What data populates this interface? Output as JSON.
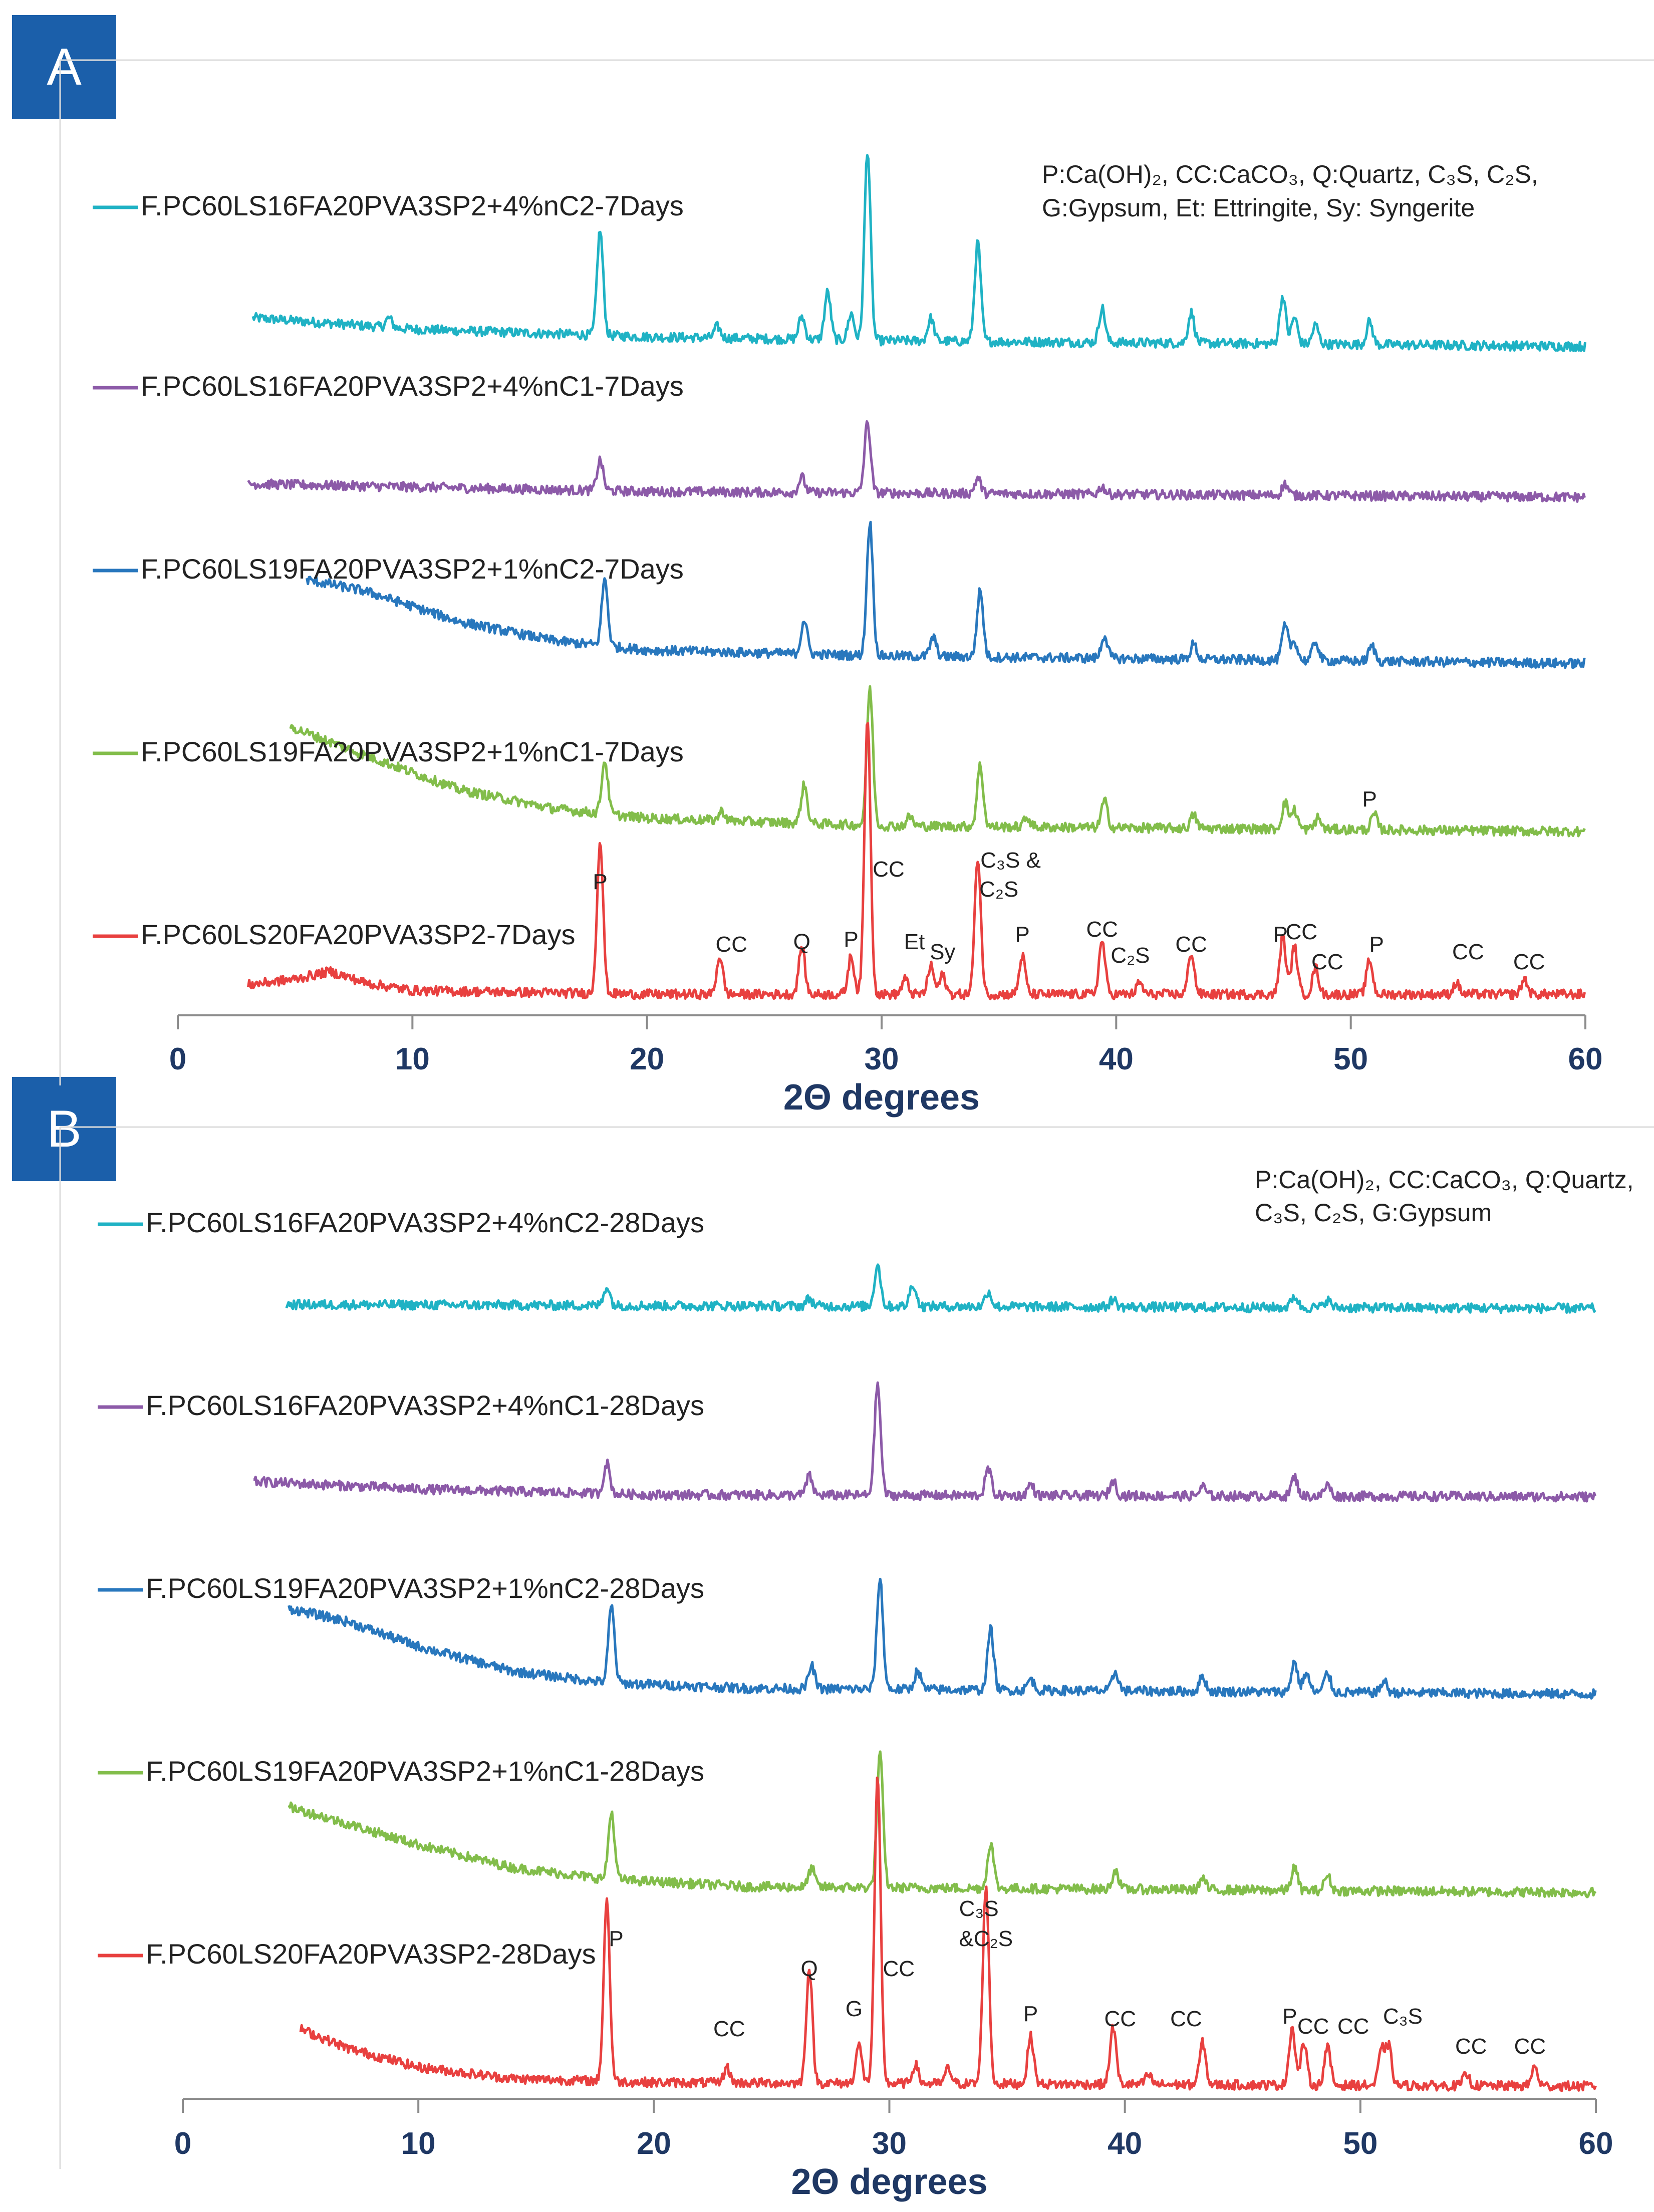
{
  "chart_data": [
    {
      "panel": "A",
      "type": "line",
      "title": "",
      "xlabel": "2Θ degrees",
      "ylabel": "",
      "xlim": [
        0,
        60
      ],
      "xticks": [
        0,
        10,
        20,
        30,
        40,
        50,
        60
      ],
      "legend_note": [
        "P:Ca(OH)₂, CC:CaCO₃, Q:Quartz, C₃S, C₂S,",
        "G:Gypsum, Et: Ettringite, Sy: Syngerite"
      ],
      "series": [
        {
          "name": "F.PC60LS16FA20PVA3SP2+4%nC2-7Days",
          "color": "#1fb2c4",
          "x_start": 3.2,
          "x_end": 60,
          "baseline": [
            [
              3.2,
              0.12
            ],
            [
              10,
              0.06
            ],
            [
              20,
              0.02
            ],
            [
              30,
              0.0
            ],
            [
              40,
              -0.01
            ],
            [
              60,
              -0.03
            ]
          ],
          "peaks": [
            [
              9.0,
              0.05
            ],
            [
              18.0,
              0.55
            ],
            [
              23.0,
              0.06
            ],
            [
              26.6,
              0.12
            ],
            [
              27.7,
              0.25
            ],
            [
              28.7,
              0.14
            ],
            [
              29.4,
              1.0
            ],
            [
              32.1,
              0.12
            ],
            [
              34.1,
              0.52
            ],
            [
              39.4,
              0.18
            ],
            [
              43.2,
              0.16
            ],
            [
              47.1,
              0.25
            ],
            [
              47.6,
              0.14
            ],
            [
              48.5,
              0.1
            ],
            [
              50.8,
              0.12
            ]
          ]
        },
        {
          "name": "F.PC60LS16FA20PVA3SP2+4%nC1-7Days",
          "color": "#8c5aa8",
          "x_start": 3.0,
          "x_end": 60,
          "baseline": [
            [
              3.0,
              0.05
            ],
            [
              20,
              0.01
            ],
            [
              60,
              -0.02
            ]
          ],
          "peaks": [
            [
              18.0,
              0.16
            ],
            [
              26.6,
              0.08
            ],
            [
              29.4,
              0.37
            ],
            [
              34.1,
              0.08
            ],
            [
              39.4,
              0.04
            ],
            [
              47.2,
              0.06
            ]
          ]
        },
        {
          "name": "F.PC60LS19FA20PVA3SP2+1%nC2-7Days",
          "color": "#2877bd",
          "x_start": 5.5,
          "x_end": 60,
          "baseline": [
            [
              5.5,
              0.42
            ],
            [
              8,
              0.36
            ],
            [
              12,
              0.2
            ],
            [
              16,
              0.1
            ],
            [
              20,
              0.05
            ],
            [
              30,
              0.02
            ],
            [
              60,
              -0.02
            ]
          ],
          "peaks": [
            [
              18.2,
              0.35
            ],
            [
              26.7,
              0.18
            ],
            [
              29.5,
              0.7
            ],
            [
              32.2,
              0.1
            ],
            [
              34.2,
              0.35
            ],
            [
              39.5,
              0.12
            ],
            [
              43.3,
              0.08
            ],
            [
              47.2,
              0.18
            ],
            [
              47.6,
              0.1
            ],
            [
              48.5,
              0.1
            ],
            [
              50.9,
              0.08
            ]
          ]
        },
        {
          "name": "F.PC60LS19FA20PVA3SP2+1%nC1-7Days",
          "color": "#82bd4a",
          "x_start": 4.8,
          "x_end": 60,
          "baseline": [
            [
              4.8,
              0.55
            ],
            [
              8,
              0.4
            ],
            [
              12,
              0.22
            ],
            [
              16,
              0.12
            ],
            [
              20,
              0.07
            ],
            [
              30,
              0.03
            ],
            [
              60,
              0.0
            ]
          ],
          "peaks": [
            [
              18.2,
              0.28
            ],
            [
              23.2,
              0.05
            ],
            [
              26.7,
              0.2
            ],
            [
              29.5,
              0.72
            ],
            [
              31.2,
              0.05
            ],
            [
              34.2,
              0.32
            ],
            [
              36.2,
              0.05
            ],
            [
              39.5,
              0.14
            ],
            [
              43.3,
              0.07
            ],
            [
              47.2,
              0.14
            ],
            [
              47.6,
              0.1
            ],
            [
              48.6,
              0.06
            ],
            [
              51.0,
              0.08
            ]
          ]
        },
        {
          "name": "F.PC60LS20FA20PVA3SP2-7Days",
          "color": "#e8403f",
          "x_start": 3.0,
          "x_end": 60,
          "baseline": [
            [
              3.0,
              0.05
            ],
            [
              5,
              0.08
            ],
            [
              6.5,
              0.12
            ],
            [
              8,
              0.06
            ],
            [
              10,
              0.02
            ],
            [
              20,
              0.0
            ],
            [
              60,
              0.0
            ]
          ],
          "peaks": [
            [
              18.0,
              0.8
            ],
            [
              23.1,
              0.2
            ],
            [
              26.6,
              0.25
            ],
            [
              28.7,
              0.2
            ],
            [
              29.4,
              1.45
            ],
            [
              31.0,
              0.08
            ],
            [
              32.1,
              0.15
            ],
            [
              32.6,
              0.1
            ],
            [
              34.1,
              0.72
            ],
            [
              36.0,
              0.2
            ],
            [
              39.4,
              0.28
            ],
            [
              41.0,
              0.06
            ],
            [
              43.2,
              0.22
            ],
            [
              47.1,
              0.3
            ],
            [
              47.6,
              0.25
            ],
            [
              48.5,
              0.14
            ],
            [
              50.8,
              0.18
            ],
            [
              54.5,
              0.06
            ],
            [
              57.4,
              0.08
            ]
          ]
        }
      ],
      "annotations": [
        {
          "text": "P",
          "x": 18.0
        },
        {
          "text": "CC",
          "x": 23.6
        },
        {
          "text": "Q",
          "x": 26.6
        },
        {
          "text": "P",
          "x": 28.7
        },
        {
          "text": "CC",
          "x": 30.3
        },
        {
          "text": "Et",
          "x": 31.4
        },
        {
          "text": "Sy",
          "x": 32.6
        },
        {
          "text": "C₃S &",
          "x": 35.5
        },
        {
          "text": "C₂S",
          "x": 35.0
        },
        {
          "text": "P",
          "x": 36.0
        },
        {
          "text": "CC",
          "x": 39.4
        },
        {
          "text": "C₂S",
          "x": 40.6
        },
        {
          "text": "CC",
          "x": 43.2
        },
        {
          "text": "P",
          "x": 47.0
        },
        {
          "text": "CC",
          "x": 47.9
        },
        {
          "text": "CC",
          "x": 49.0
        },
        {
          "text": "P",
          "x": 50.8
        },
        {
          "text": "P",
          "x": 51.1
        },
        {
          "text": "CC",
          "x": 55.0
        },
        {
          "text": "CC",
          "x": 57.6
        }
      ]
    },
    {
      "panel": "B",
      "type": "line",
      "title": "",
      "xlabel": "2Θ degrees",
      "ylabel": "",
      "xlim": [
        0,
        60
      ],
      "xticks": [
        0,
        10,
        20,
        30,
        40,
        50,
        60
      ],
      "legend_note": [
        "P:Ca(OH)₂, CC:CaCO₃, Q:Quartz,",
        "C₃S, C₂S, G:Gypsum"
      ],
      "series": [
        {
          "name": "F.PC60LS16FA20PVA3SP2+4%nC2-28Days",
          "color": "#1fb2c4",
          "x_start": 4.4,
          "x_end": 60,
          "baseline": [
            [
              4.4,
              0.02
            ],
            [
              60,
              0.0
            ]
          ],
          "peaks": [
            [
              18.0,
              0.1
            ],
            [
              26.6,
              0.04
            ],
            [
              29.5,
              0.22
            ],
            [
              31.0,
              0.12
            ],
            [
              34.2,
              0.08
            ],
            [
              39.5,
              0.04
            ],
            [
              47.2,
              0.06
            ],
            [
              48.6,
              0.04
            ]
          ]
        },
        {
          "name": "F.PC60LS16FA20PVA3SP2+4%nC1-28Days",
          "color": "#8c5aa8",
          "x_start": 3.0,
          "x_end": 60,
          "baseline": [
            [
              3.0,
              0.08
            ],
            [
              10,
              0.04
            ],
            [
              20,
              0.01
            ],
            [
              60,
              0.0
            ]
          ],
          "peaks": [
            [
              18.0,
              0.16
            ],
            [
              26.6,
              0.1
            ],
            [
              29.5,
              0.58
            ],
            [
              34.2,
              0.14
            ],
            [
              36.0,
              0.06
            ],
            [
              39.5,
              0.08
            ],
            [
              43.3,
              0.05
            ],
            [
              47.2,
              0.1
            ],
            [
              48.6,
              0.06
            ]
          ]
        },
        {
          "name": "F.PC60LS19FA20PVA3SP2+1%nC2-28Days",
          "color": "#2877bd",
          "x_start": 4.5,
          "x_end": 60,
          "baseline": [
            [
              4.5,
              0.45
            ],
            [
              7,
              0.38
            ],
            [
              10,
              0.25
            ],
            [
              14,
              0.12
            ],
            [
              18,
              0.06
            ],
            [
              24,
              0.03
            ],
            [
              60,
              0.0
            ]
          ],
          "peaks": [
            [
              18.2,
              0.4
            ],
            [
              26.7,
              0.12
            ],
            [
              29.6,
              0.58
            ],
            [
              31.2,
              0.1
            ],
            [
              34.3,
              0.32
            ],
            [
              36.0,
              0.06
            ],
            [
              39.6,
              0.1
            ],
            [
              43.3,
              0.08
            ],
            [
              47.2,
              0.16
            ],
            [
              47.7,
              0.1
            ],
            [
              48.6,
              0.1
            ],
            [
              51.0,
              0.06
            ]
          ]
        },
        {
          "name": "F.PC60LS19FA20PVA3SP2+1%nC1-28Days",
          "color": "#82bd4a",
          "x_start": 4.5,
          "x_end": 60,
          "baseline": [
            [
              4.5,
              0.45
            ],
            [
              7,
              0.36
            ],
            [
              10,
              0.25
            ],
            [
              14,
              0.13
            ],
            [
              18,
              0.07
            ],
            [
              24,
              0.03
            ],
            [
              60,
              0.0
            ]
          ],
          "peaks": [
            [
              18.2,
              0.35
            ],
            [
              26.7,
              0.1
            ],
            [
              29.6,
              0.7
            ],
            [
              34.3,
              0.24
            ],
            [
              39.6,
              0.1
            ],
            [
              43.3,
              0.06
            ],
            [
              47.2,
              0.12
            ],
            [
              48.6,
              0.08
            ]
          ]
        },
        {
          "name": "F.PC60LS20FA20PVA3SP2-28Days",
          "color": "#e8403f",
          "x_start": 5.0,
          "x_end": 60,
          "baseline": [
            [
              5.0,
              0.3
            ],
            [
              7,
              0.2
            ],
            [
              10,
              0.1
            ],
            [
              14,
              0.04
            ],
            [
              20,
              0.02
            ],
            [
              60,
              0.0
            ]
          ],
          "peaks": [
            [
              18.0,
              0.95
            ],
            [
              23.1,
              0.08
            ],
            [
              26.6,
              0.6
            ],
            [
              28.7,
              0.2
            ],
            [
              29.5,
              1.6
            ],
            [
              31.1,
              0.1
            ],
            [
              32.5,
              0.08
            ],
            [
              34.1,
              1.04
            ],
            [
              36.0,
              0.25
            ],
            [
              39.5,
              0.3
            ],
            [
              41.0,
              0.05
            ],
            [
              43.3,
              0.22
            ],
            [
              47.1,
              0.3
            ],
            [
              47.6,
              0.22
            ],
            [
              48.6,
              0.2
            ],
            [
              50.9,
              0.18
            ],
            [
              51.2,
              0.2
            ],
            [
              54.5,
              0.06
            ],
            [
              57.4,
              0.1
            ]
          ]
        }
      ],
      "annotations": [
        {
          "text": "P",
          "x": 18.4
        },
        {
          "text": "CC",
          "x": 23.2
        },
        {
          "text": "Q",
          "x": 26.6
        },
        {
          "text": "G",
          "x": 28.5
        },
        {
          "text": "CC",
          "x": 30.4
        },
        {
          "text": "C₃S",
          "x": 33.8
        },
        {
          "text": "&C₂S",
          "x": 34.1
        },
        {
          "text": "P",
          "x": 36.0
        },
        {
          "text": "CC",
          "x": 39.8
        },
        {
          "text": "CC",
          "x": 42.6
        },
        {
          "text": "P",
          "x": 47.0
        },
        {
          "text": "CC",
          "x": 48.0
        },
        {
          "text": "CC",
          "x": 49.7
        },
        {
          "text": "C₃S",
          "x": 51.8
        },
        {
          "text": "CC",
          "x": 54.7
        },
        {
          "text": "CC",
          "x": 57.2
        }
      ]
    }
  ],
  "palette": {
    "badge": "#1b5faa",
    "axis_text": "#1f3864",
    "axis_line": "#8c8c8c",
    "text": "#222222"
  }
}
